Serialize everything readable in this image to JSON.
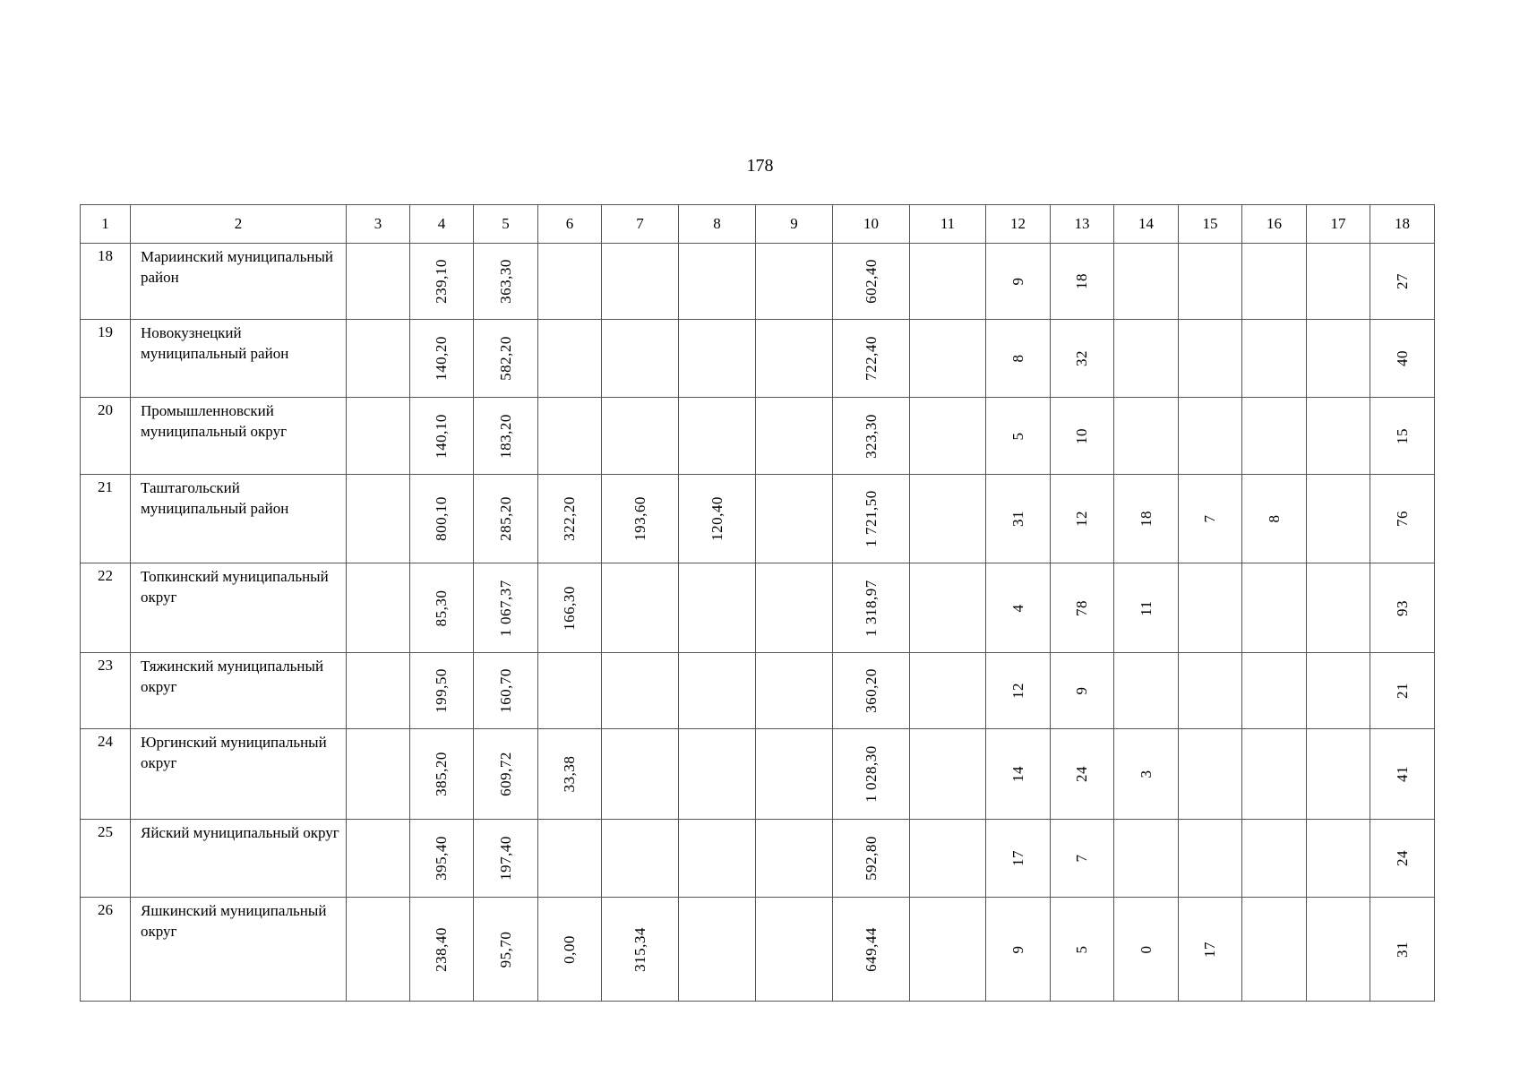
{
  "page_number": "178",
  "columns": [
    "1",
    "2",
    "3",
    "4",
    "5",
    "6",
    "7",
    "8",
    "9",
    "10",
    "11",
    "12",
    "13",
    "14",
    "15",
    "16",
    "17",
    "18"
  ],
  "rows": [
    {
      "no": "18",
      "name": "Мариинский муниципальный район",
      "c": [
        "",
        "239,10",
        "363,30",
        "",
        "",
        "",
        "602,40",
        "",
        "9",
        "18",
        "",
        "",
        "",
        "",
        "27"
      ]
    },
    {
      "no": "19",
      "name": "Новокузнецкий муниципальный район",
      "c": [
        "",
        "140,20",
        "582,20",
        "",
        "",
        "",
        "722,40",
        "",
        "8",
        "32",
        "",
        "",
        "",
        "",
        "40"
      ]
    },
    {
      "no": "20",
      "name": "Промышленновский муниципальный округ",
      "c": [
        "",
        "140,10",
        "183,20",
        "",
        "",
        "",
        "323,30",
        "",
        "5",
        "10",
        "",
        "",
        "",
        "",
        "15"
      ]
    },
    {
      "no": "21",
      "name": "Таштагольский муниципальный район",
      "c": [
        "",
        "800,10",
        "285,20",
        "322,20",
        "193,60",
        "120,40",
        "",
        "1 721,50",
        "",
        "31",
        "12",
        "18",
        "7",
        "8",
        "",
        "76"
      ]
    },
    {
      "no": "22",
      "name": "Топкинский муниципальный округ",
      "c": [
        "",
        "85,30",
        "1 067,37",
        "166,30",
        "",
        "",
        "",
        "1 318,97",
        "",
        "4",
        "78",
        "11",
        "",
        "",
        "",
        "93"
      ]
    },
    {
      "no": "23",
      "name": "Тяжинский муниципальный округ",
      "c": [
        "",
        "199,50",
        "160,70",
        "",
        "",
        "",
        "",
        "360,20",
        "",
        "12",
        "9",
        "",
        "",
        "",
        "",
        "21"
      ]
    },
    {
      "no": "24",
      "name": "Юргинский муниципальный округ",
      "c": [
        "",
        "385,20",
        "609,72",
        "33,38",
        "",
        "",
        "",
        "1 028,30",
        "",
        "14",
        "24",
        "3",
        "",
        "",
        "",
        "41"
      ]
    },
    {
      "no": "25",
      "name": "Яйский муниципальный округ",
      "c": [
        "",
        "395,40",
        "197,40",
        "",
        "",
        "",
        "",
        "592,80",
        "",
        "17",
        "7",
        "",
        "",
        "",
        "",
        "24"
      ]
    },
    {
      "no": "26",
      "name": "Яшкинский муниципальный округ",
      "c": [
        "",
        "238,40",
        "95,70",
        "0,00",
        "315,34",
        "",
        "",
        "649,44",
        "",
        "9",
        "5",
        "0",
        "17",
        "",
        "",
        "31"
      ]
    }
  ]
}
